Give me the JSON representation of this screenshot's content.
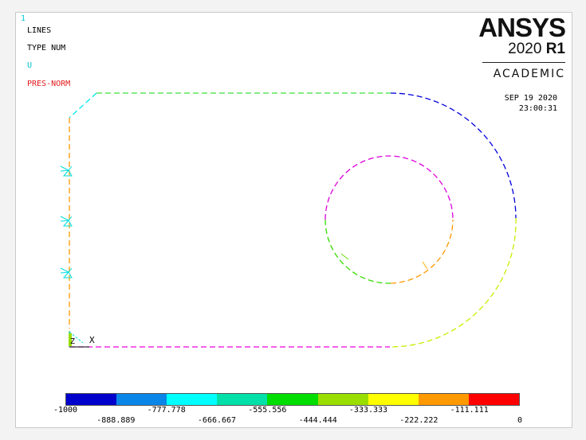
{
  "viewport": {
    "window_number": "1",
    "plot_labels": [
      "LINES",
      "TYPE NUM",
      "U",
      "PRES-NORM"
    ],
    "logo": {
      "brand": "ANSYS",
      "release_year": "2020",
      "release_tag": "R1",
      "license": "ACADEMIC"
    },
    "date": "SEP 19 2020",
    "time": "23:00:31",
    "triad": {
      "z_label": "Z",
      "x_label": "X"
    }
  },
  "legend": {
    "colors": [
      "#0000cc",
      "#0a86e8",
      "#00ffff",
      "#00e0a8",
      "#00dd00",
      "#9ade00",
      "#ffff00",
      "#ff9900",
      "#ff0000"
    ],
    "values_top": [
      "-1000",
      "-777.778",
      "-555.556",
      "-333.333",
      "-111.111"
    ],
    "values_bottom": [
      "-888.889",
      "-666.667",
      "-444.444",
      "-222.222",
      "0"
    ]
  }
}
